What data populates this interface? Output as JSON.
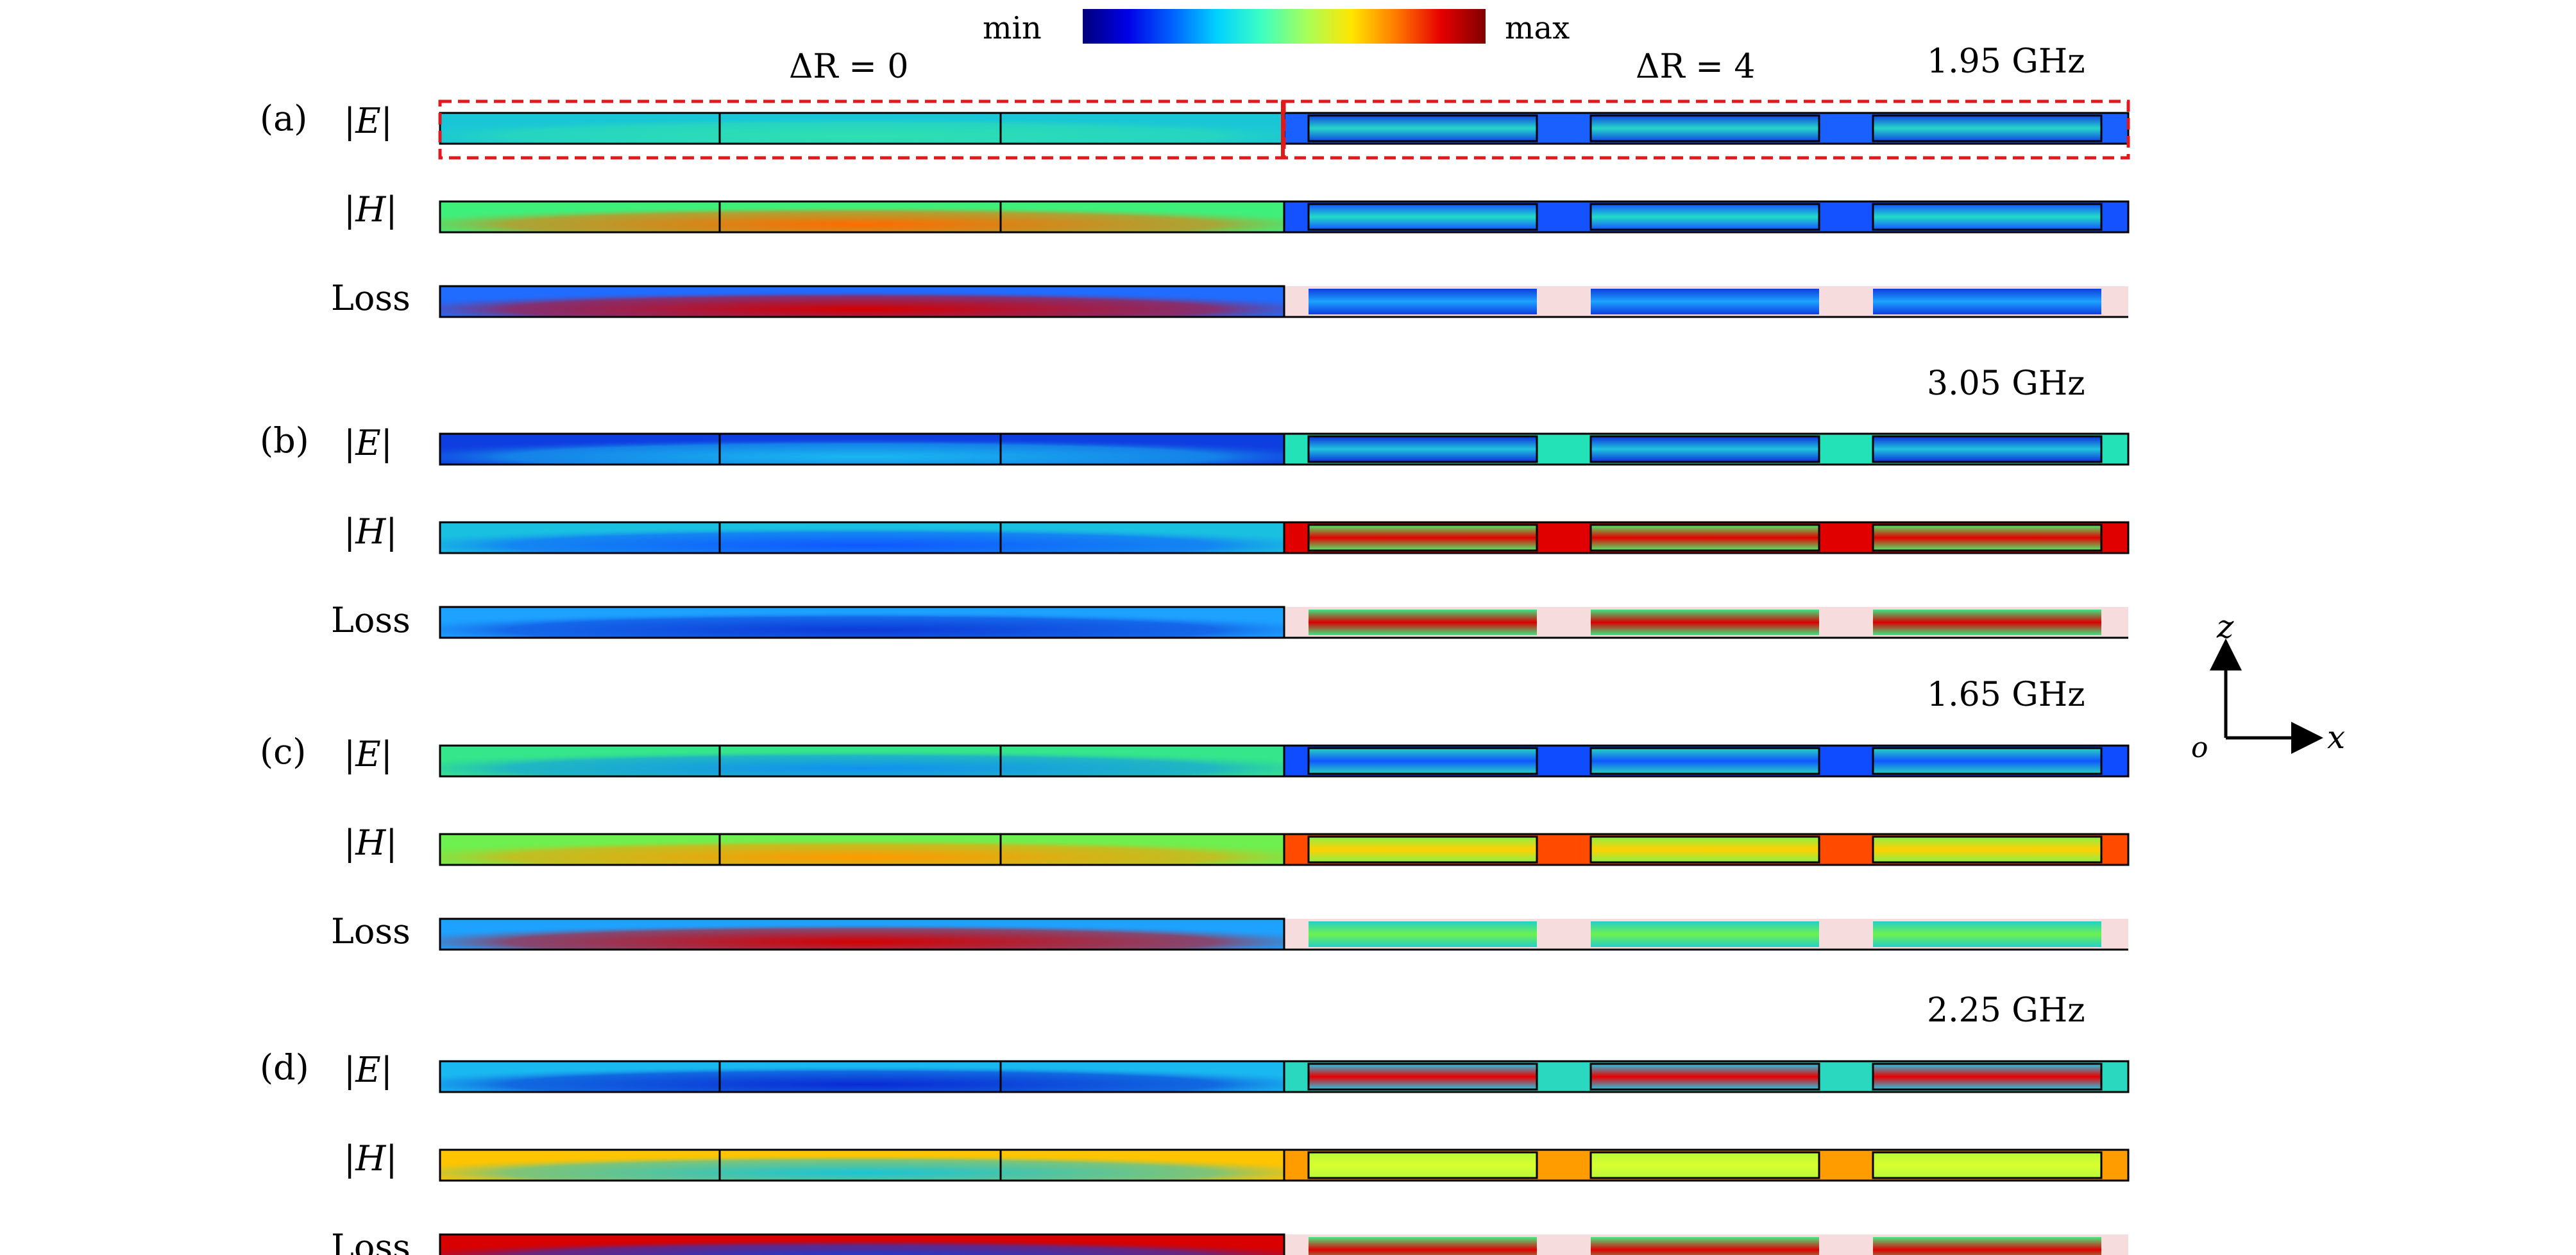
{
  "colorbar": {
    "min_label": "min",
    "max_label": "max",
    "stops": [
      "#00007a",
      "#0000e6",
      "#0062ff",
      "#00d2ff",
      "#3dffc2",
      "#a6ff59",
      "#ffe600",
      "#ff7a00",
      "#e60000",
      "#800000"
    ]
  },
  "header": {
    "left_label": "ΔR = 0",
    "right_label": "ΔR = 4"
  },
  "panels": [
    {
      "id": "a",
      "tag": "(a)",
      "frequency": "1.95 GHz",
      "rows": [
        {
          "quantity": "|E|",
          "left": {
            "edge": "#19c6d6",
            "core": "#2fe0b0",
            "hot": 0.0
          },
          "right": {
            "rect": "#26d6c8",
            "gap": "#1a5fff",
            "edge": "#1046e6"
          }
        },
        {
          "quantity": "|H|",
          "left": {
            "edge": "#3ef07a",
            "core": "#ff6a00",
            "hot": 0.55
          },
          "right": {
            "rect": "#22dcc8",
            "gap": "#1552ff",
            "edge": "#1552ff"
          }
        },
        {
          "quantity": "Loss",
          "left": {
            "edge": "#1f6cff",
            "core": "#d40000",
            "hot": 0.8
          },
          "right": {
            "rect": "#1da2ff",
            "gap": "#f6dcdc",
            "edge": "#0f3ee0"
          }
        }
      ]
    },
    {
      "id": "b",
      "tag": "(b)",
      "frequency": "3.05 GHz",
      "rows": [
        {
          "quantity": "|E|",
          "left": {
            "edge": "#0f3ee0",
            "core": "#19b8f0",
            "hot": 0.0
          },
          "right": {
            "rect": "#21c4e0",
            "gap": "#24e2b8",
            "edge": "#0c2fd8"
          }
        },
        {
          "quantity": "|H|",
          "left": {
            "edge": "#19c0e0",
            "core": "#0f58ff",
            "hot": 0.0
          },
          "right": {
            "rect": "#e20000",
            "gap": "#e00000",
            "edge": "#4ef06a"
          }
        },
        {
          "quantity": "Loss",
          "left": {
            "edge": "#1da2ff",
            "core": "#0d3ad8",
            "hot": 0.0
          },
          "right": {
            "rect": "#d80000",
            "gap": "#f6dcdc",
            "edge": "#3ee682"
          }
        }
      ]
    },
    {
      "id": "c",
      "tag": "(c)",
      "frequency": "1.65 GHz",
      "rows": [
        {
          "quantity": "|E|",
          "left": {
            "edge": "#35e68a",
            "core": "#1090f0",
            "hot": 0.0
          },
          "right": {
            "rect": "#0f58ff",
            "gap": "#0f4cff",
            "edge": "#28d4c0"
          }
        },
        {
          "quantity": "|H|",
          "left": {
            "edge": "#6ef050",
            "core": "#ff9a00",
            "hot": 0.35
          },
          "right": {
            "rect": "#ffd000",
            "gap": "#ff4a00",
            "edge": "#8cf048"
          }
        },
        {
          "quantity": "Loss",
          "left": {
            "edge": "#1da2ff",
            "core": "#d60000",
            "hot": 0.7
          },
          "right": {
            "rect": "#6ef050",
            "gap": "#f6dcdc",
            "edge": "#24d0c8"
          }
        }
      ]
    },
    {
      "id": "d",
      "tag": "(d)",
      "frequency": "2.25 GHz",
      "rows": [
        {
          "quantity": "|E|",
          "left": {
            "edge": "#19b8f0",
            "core": "#0a2ad4",
            "hot": 0.0
          },
          "right": {
            "rect": "#e80000",
            "gap": "#2ad8c0",
            "edge": "#25c8e8"
          }
        },
        {
          "quantity": "|H|",
          "left": {
            "edge": "#ffc400",
            "core": "#19c4d6",
            "hot": 0.0
          },
          "right": {
            "rect": "#d8ff30",
            "gap": "#ff9c00",
            "edge": "#b8f838"
          }
        },
        {
          "quantity": "Loss",
          "left": {
            "edge": "#d80000",
            "core": "#1040e0",
            "hot": 0.0
          },
          "right": {
            "rect": "#e00000",
            "gap": "#f6dcdc",
            "edge": "#4ae884"
          }
        }
      ]
    }
  ],
  "axes": {
    "z_label": "z",
    "x_label": "x",
    "origin_label": "o"
  }
}
